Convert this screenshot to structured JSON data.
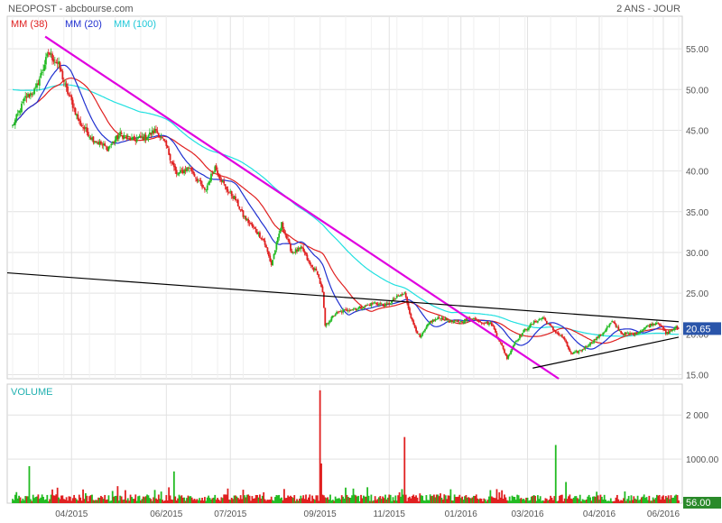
{
  "header": {
    "title": "NEOPOST - abcbourse.com",
    "period": "2 ANS - JOUR"
  },
  "chart_data": {
    "type": "candlestick",
    "price_panel": {
      "legend": [
        {
          "label": "MM (38)",
          "color": "#e02020"
        },
        {
          "label": "MM (20)",
          "color": "#2030d0"
        },
        {
          "label": "MM (100)",
          "color": "#20e0e0"
        }
      ],
      "y_ticks": [
        15.0,
        20.0,
        25.0,
        30.0,
        35.0,
        40.0,
        45.0,
        50.0,
        55.0
      ],
      "y_tick_labels": [
        "15.00",
        "20.00",
        "25.00",
        "30.00",
        "35.00",
        "40.00",
        "45.00",
        "50.00",
        "55.00"
      ],
      "ylim": [
        14.5,
        59.0
      ],
      "last_price": 20.65,
      "last_price_label": "20.65",
      "close_anchors": [
        [
          0,
          45.5
        ],
        [
          10,
          49.0
        ],
        [
          18,
          50.0
        ],
        [
          28,
          54.5
        ],
        [
          36,
          53.0
        ],
        [
          42,
          50.0
        ],
        [
          46,
          48.5
        ],
        [
          52,
          46.0
        ],
        [
          62,
          44.0
        ],
        [
          74,
          42.8
        ],
        [
          84,
          44.5
        ],
        [
          94,
          43.8
        ],
        [
          104,
          44.2
        ],
        [
          112,
          45.0
        ],
        [
          120,
          43.0
        ],
        [
          128,
          39.5
        ],
        [
          138,
          40.5
        ],
        [
          150,
          37.5
        ],
        [
          158,
          40.5
        ],
        [
          166,
          38.0
        ],
        [
          174,
          36.5
        ],
        [
          180,
          34.5
        ],
        [
          188,
          33.0
        ],
        [
          196,
          31.5
        ],
        [
          202,
          28.5
        ],
        [
          210,
          33.5
        ],
        [
          218,
          30.0
        ],
        [
          226,
          30.5
        ],
        [
          232,
          28.5
        ],
        [
          238,
          27.5
        ],
        [
          242,
          25.0
        ],
        [
          244,
          21.0
        ],
        [
          252,
          22.5
        ],
        [
          262,
          23.0
        ],
        [
          272,
          23.2
        ],
        [
          282,
          23.8
        ],
        [
          292,
          23.5
        ],
        [
          300,
          24.5
        ],
        [
          306,
          25.0
        ],
        [
          312,
          21.5
        ],
        [
          318,
          19.5
        ],
        [
          326,
          21.5
        ],
        [
          334,
          22.0
        ],
        [
          342,
          21.5
        ],
        [
          350,
          21.5
        ],
        [
          358,
          22.0
        ],
        [
          366,
          21.5
        ],
        [
          374,
          21.2
        ],
        [
          382,
          18.5
        ],
        [
          386,
          17.0
        ],
        [
          392,
          19.0
        ],
        [
          400,
          20.5
        ],
        [
          408,
          21.5
        ],
        [
          414,
          22.0
        ],
        [
          422,
          20.5
        ],
        [
          430,
          19.5
        ],
        [
          436,
          17.5
        ],
        [
          444,
          18.0
        ],
        [
          452,
          19.0
        ],
        [
          460,
          20.0
        ],
        [
          468,
          21.5
        ],
        [
          476,
          20.0
        ],
        [
          486,
          20.0
        ],
        [
          496,
          21.0
        ],
        [
          504,
          21.5
        ],
        [
          510,
          20.0
        ],
        [
          518,
          20.8
        ]
      ],
      "trendlines": [
        {
          "color": "#e000e0",
          "from": [
            "2015-02-20",
            56.5
          ],
          "to": [
            "2016-03-20",
            14.5
          ]
        },
        {
          "color": "#000000",
          "from": [
            "2015-01-20",
            27.5
          ],
          "to": [
            "2016-06-20",
            21.5
          ]
        },
        {
          "color": "#000000",
          "from": [
            "2016-02-29",
            15.8
          ],
          "to": [
            "2016-06-20",
            19.6
          ]
        }
      ]
    },
    "volume_panel": {
      "title": "VOLUME",
      "y_ticks": [
        1000,
        2000
      ],
      "y_tick_labels": [
        "1000.00",
        "2 000"
      ],
      "ylim": [
        0,
        2700
      ],
      "last_volume_label": "56.00",
      "spikes": [
        {
          "index": 13,
          "value": 840,
          "up": true
        },
        {
          "index": 126,
          "value": 720,
          "up": true
        },
        {
          "index": 240,
          "value": 2560,
          "up": false
        },
        {
          "index": 241,
          "value": 900,
          "up": false
        },
        {
          "index": 306,
          "value": 1500,
          "up": false
        },
        {
          "index": 424,
          "value": 1320,
          "up": true
        },
        {
          "index": 432,
          "value": 480,
          "up": true
        }
      ]
    },
    "x_ticks": [
      {
        "label": "04/2015",
        "index": 46
      },
      {
        "label": "06/2015",
        "index": 120
      },
      {
        "label": "07/2015",
        "index": 170
      },
      {
        "label": "09/2015",
        "index": 240
      },
      {
        "label": "11/2015",
        "index": 294
      },
      {
        "label": "01/2016",
        "index": 350
      },
      {
        "label": "03/2016",
        "index": 402
      },
      {
        "label": "04/2016",
        "index": 458
      },
      {
        "label": "06/2016",
        "index": 508
      }
    ],
    "grid": true,
    "colors": {
      "up": "#22bb22",
      "down": "#e02020",
      "grid": "#e2e2e2",
      "axis_text": "#555555",
      "frame": "#cccccc",
      "label_box": "#2a55aa"
    }
  }
}
